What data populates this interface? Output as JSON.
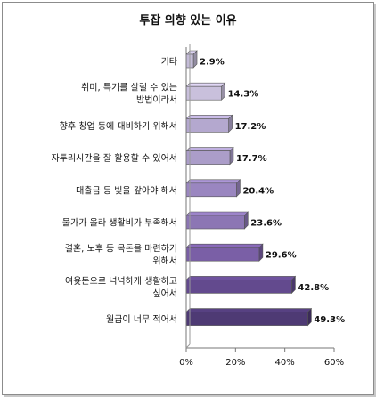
{
  "chart_data": {
    "type": "bar",
    "orientation": "horizontal",
    "title": "투잡 의향 있는 이유",
    "categories": [
      [
        "기타"
      ],
      [
        "취미, 특기를 살릴 수 있는",
        "방법이라서"
      ],
      [
        "향후 창업 등에 대비하기 위해서"
      ],
      [
        "자투리시간을 잘 활용할 수 있어서"
      ],
      [
        "대출금 등 빚을 갚아야 해서"
      ],
      [
        "물가가 올라 생활비가 부족해서"
      ],
      [
        "결혼, 노후 등 목돈을 마련하기",
        "위해서"
      ],
      [
        "여윳돈으로 넉넉하게 생활하고",
        "싶어서"
      ],
      [
        "월급이 너무 적어서"
      ]
    ],
    "values": [
      2.9,
      14.3,
      17.2,
      17.7,
      20.4,
      23.6,
      29.6,
      42.8,
      49.3
    ],
    "value_labels": [
      "2.9%",
      "14.3%",
      "17.2%",
      "17.7%",
      "20.4%",
      "23.6%",
      "29.6%",
      "42.8%",
      "49.3%"
    ],
    "xlim": [
      0,
      60
    ],
    "ticks": [
      0,
      20,
      40,
      60
    ],
    "tick_labels": [
      "0%",
      "20%",
      "40%",
      "60%"
    ],
    "style": "3d-bars",
    "colors": [
      "#c4bcd8",
      "#c9c0dc",
      "#b4a8cf",
      "#ab9dc9",
      "#9a86c0",
      "#8c76b4",
      "#7a5fa6",
      "#634a8e",
      "#4e3a74"
    ],
    "grid": false,
    "legend": "none"
  }
}
